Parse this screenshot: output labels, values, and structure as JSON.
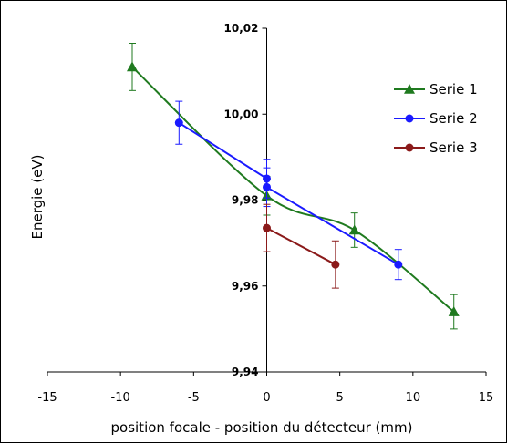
{
  "chart_data": {
    "type": "scatter",
    "xlabel": "position focale - position du détecteur  (mm)",
    "ylabel": "Energie (eV)",
    "xlim": [
      -15,
      15
    ],
    "ylim": [
      9.94,
      10.02
    ],
    "xticks": [
      -15,
      -10,
      -5,
      0,
      5,
      10,
      15
    ],
    "yticks": [
      9.94,
      9.96,
      9.98,
      10.0,
      10.02
    ],
    "xtick_labels": [
      "-15",
      "-10",
      "-5",
      "0",
      "5",
      "10",
      "15"
    ],
    "ytick_labels": [
      "9,94",
      "9,96",
      "9,98",
      "10,00",
      "10,02"
    ],
    "legend_position": "right",
    "grid": false,
    "series": [
      {
        "name": "Serie 1",
        "color": "#1f7a1f",
        "marker": "triangle",
        "smooth": true,
        "x": [
          -9.2,
          0,
          6,
          12.8
        ],
        "y": [
          10.011,
          9.981,
          9.973,
          9.954
        ],
        "err": [
          0.0055,
          0.0045,
          0.004,
          0.004
        ]
      },
      {
        "name": "Serie 2",
        "color": "#1a1aff",
        "marker": "circle",
        "smooth": false,
        "x": [
          -6,
          0,
          0,
          9
        ],
        "y": [
          9.998,
          9.985,
          9.983,
          9.965
        ],
        "err": [
          0.005,
          0.0045,
          0.0045,
          0.0035
        ]
      },
      {
        "name": "Serie 3",
        "color": "#8b1a1a",
        "marker": "circle",
        "smooth": false,
        "x": [
          0,
          4.7
        ],
        "y": [
          9.9735,
          9.965
        ],
        "err": [
          0.0055,
          0.0055
        ]
      }
    ]
  }
}
